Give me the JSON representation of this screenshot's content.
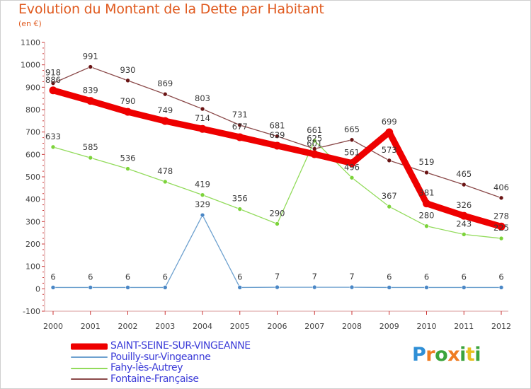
{
  "chart_data": {
    "type": "line",
    "title": "Evolution du Montant de la Dette par Habitant",
    "subtitle": "(en €)",
    "xlabel": "",
    "ylabel": "",
    "ylim": [
      -100,
      1100
    ],
    "yticks": [
      -100,
      0,
      100,
      200,
      300,
      400,
      500,
      600,
      700,
      800,
      900,
      1000,
      1100
    ],
    "categories": [
      "2000",
      "2001",
      "2002",
      "2003",
      "2004",
      "2005",
      "2006",
      "2007",
      "2008",
      "2009",
      "2010",
      "2011",
      "2012"
    ],
    "grid": false,
    "legend_position": "bottom-left",
    "series": [
      {
        "name": "Fontaine-Française",
        "color": "#8b4a4a",
        "marker_color": "#6a1414",
        "values": [
          918,
          991,
          930,
          869,
          803,
          731,
          681,
          625,
          665,
          573,
          519,
          465,
          406
        ]
      },
      {
        "name": "Fahy-lès-Autrey",
        "color": "#92db5b",
        "marker_color": "#7cd33a",
        "values": [
          633,
          585,
          536,
          478,
          419,
          356,
          290,
          661,
          496,
          367,
          280,
          243,
          225
        ]
      },
      {
        "name": "Pouilly-sur-Vingeanne",
        "color": "#6ea1cf",
        "marker_color": "#4a87c6",
        "values": [
          6,
          6,
          6,
          6,
          329,
          6,
          7,
          7,
          7,
          6,
          6,
          6,
          6
        ]
      },
      {
        "name": "SAINT-SEINE-SUR-VINGEANNE",
        "color": "#ee0000",
        "marker_color": "#ee0000",
        "bold": true,
        "values": [
          886,
          839,
          790,
          749,
          714,
          677,
          639,
          601,
          561,
          699,
          381,
          326,
          278
        ]
      }
    ]
  },
  "legend_order": [
    "SAINT-SEINE-SUR-VINGEANNE",
    "Pouilly-sur-Vingeanne",
    "Fahy-lès-Autrey",
    "Fontaine-Française"
  ],
  "brand": {
    "letters": [
      "P",
      "r",
      "o",
      "x",
      "i",
      "t",
      "i"
    ],
    "colors": [
      "#2f8fd6",
      "#ef7c22",
      "#3ca43c",
      "#ef7c22",
      "#3ca43c",
      "#e8c020",
      "#3ca43c"
    ]
  }
}
